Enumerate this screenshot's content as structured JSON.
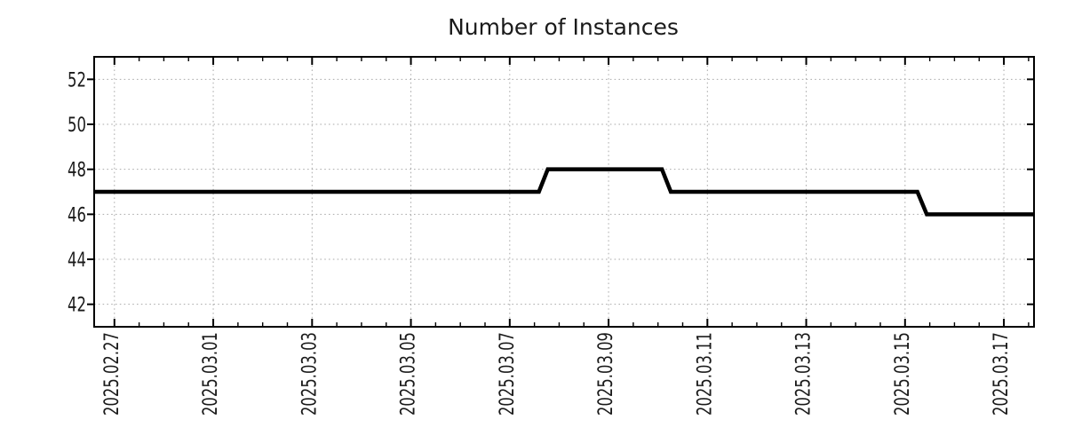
{
  "chart_data": {
    "type": "line",
    "title": "Number of Instances",
    "x_axis": {
      "tick_labels": [
        "2025.02.27",
        "2025.03.01",
        "2025.03.03",
        "2025.03.05",
        "2025.03.07",
        "2025.03.09",
        "2025.03.11",
        "2025.03.13",
        "2025.03.15",
        "2025.03.17"
      ],
      "tick_day_offsets": [
        0,
        2,
        4,
        6,
        8,
        10,
        12,
        14,
        16,
        18
      ],
      "range_day_offsets": [
        -0.41,
        18.61
      ],
      "minor_tick_interval_days": 0.5,
      "label_rotation_deg": -90
    },
    "y_axis": {
      "ticks": [
        42,
        44,
        46,
        48,
        50,
        52
      ],
      "range": [
        41,
        53
      ]
    },
    "grid": {
      "horizontal": true,
      "vertical": true,
      "style": "dotted"
    },
    "legend": "none",
    "series": [
      {
        "name": "Number of Instances",
        "color": "#000000",
        "line_width": 4.5,
        "points": [
          {
            "day_offset_from_first_tick": -0.41,
            "value": 47
          },
          {
            "day_offset_from_first_tick": 8.59,
            "value": 47
          },
          {
            "day_offset_from_first_tick": 8.77,
            "value": 48
          },
          {
            "day_offset_from_first_tick": 11.08,
            "value": 48
          },
          {
            "day_offset_from_first_tick": 11.26,
            "value": 47
          },
          {
            "day_offset_from_first_tick": 16.25,
            "value": 47
          },
          {
            "day_offset_from_first_tick": 16.44,
            "value": 46
          },
          {
            "day_offset_from_first_tick": 18.61,
            "value": 46
          }
        ]
      }
    ]
  },
  "colors": {
    "line": "#000000",
    "grid": "#aaaaaa",
    "border": "#000000",
    "text": "#1a1a1a",
    "background": "#ffffff"
  }
}
